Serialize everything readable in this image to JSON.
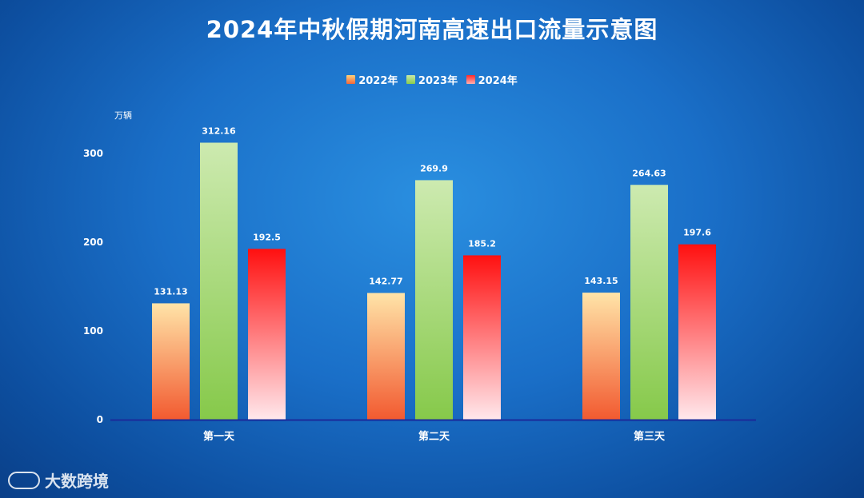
{
  "chart_data": {
    "type": "bar",
    "title": "2024年中秋假期河南高速出口流量示意图",
    "ylabel": "万辆",
    "xlabel": "",
    "categories": [
      "第一天",
      "第二天",
      "第三天"
    ],
    "series": [
      {
        "name": "2022年",
        "values": [
          131.13,
          142.77,
          143.15
        ],
        "labels": [
          "131.13",
          "142.77",
          "143.15"
        ]
      },
      {
        "name": "2023年",
        "values": [
          312.16,
          269.9,
          264.63
        ],
        "labels": [
          "312.16",
          "269.9",
          "264.63"
        ]
      },
      {
        "name": "2024年",
        "values": [
          192.5,
          185.2,
          197.6
        ],
        "labels": [
          "192.5",
          "185.2",
          "197.6"
        ]
      }
    ],
    "ylim": [
      0,
      300
    ],
    "yticks": [
      0,
      100,
      200,
      300
    ],
    "grid": false,
    "legend": "top"
  },
  "watermark": {
    "text": "大数跨境"
  }
}
